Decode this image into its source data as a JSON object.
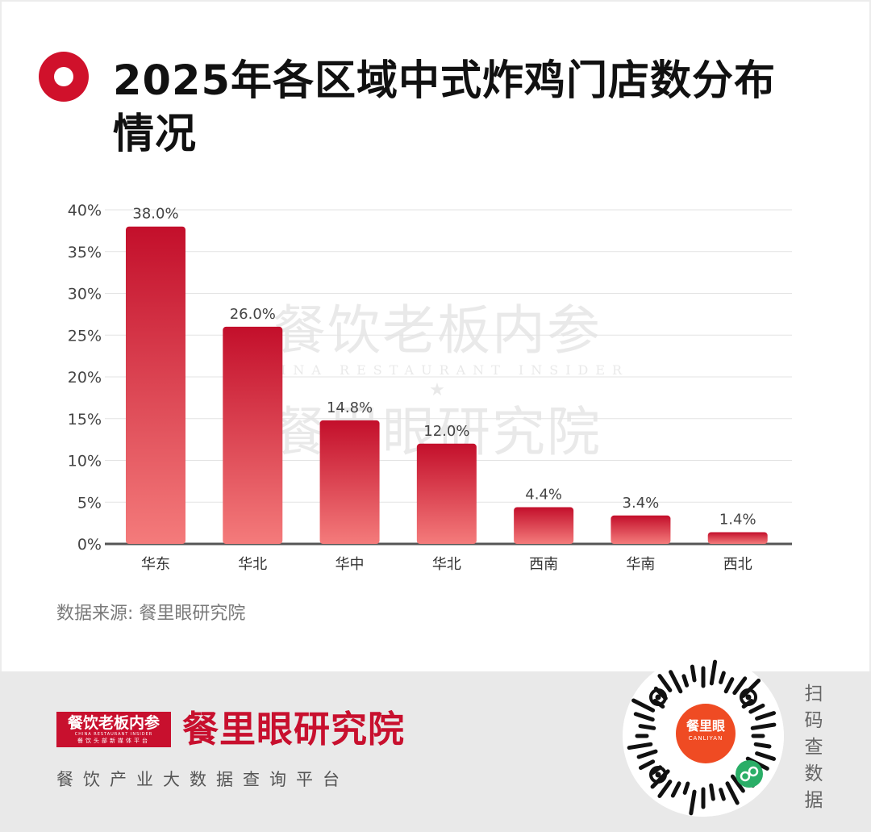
{
  "header": {
    "title": "2025年各区域中式炸鸡门店数分布情况"
  },
  "chart_data": {
    "type": "bar",
    "title": "2025年各区域中式炸鸡门店数分布情况",
    "categories": [
      "华东",
      "华北",
      "华中",
      "华北",
      "西南",
      "华南",
      "西北"
    ],
    "values": [
      38.0,
      26.0,
      14.8,
      12.0,
      4.4,
      3.4,
      1.4
    ],
    "value_labels": [
      "38.0%",
      "26.0%",
      "14.8%",
      "12.0%",
      "4.4%",
      "3.4%",
      "1.4%"
    ],
    "yticks": [
      "0%",
      "5%",
      "10%",
      "15%",
      "20%",
      "25%",
      "30%",
      "35%",
      "40%"
    ],
    "ylim": [
      0,
      40
    ],
    "grid": true,
    "legend": "none",
    "colors": {
      "bar_top": "#c30f2b",
      "bar_bottom": "#f47b7b",
      "axis": "#555555",
      "grid": "#e3e3e3"
    }
  },
  "source": "数据来源: 餐里眼研究院",
  "watermark": {
    "line1": "餐饮老板内参",
    "line2": "CHINA RESTAURANT INSIDER",
    "line3": "★",
    "line4": "餐里眼研究院"
  },
  "footer": {
    "box_main": "餐饮老板内参",
    "box_en": "CHINA RESTAURANT INSIDER",
    "box_sub": "餐饮头部新媒体平台",
    "brand_name": "餐里眼研究院",
    "tagline": "餐饮产业大数据查询平台",
    "qr_center_main": "餐里眼",
    "qr_center_en": "CANLIYAN",
    "scan_text": "扫码查数据",
    "colors": {
      "brand_red": "#c8102e",
      "qr_orange": "#ef4b23"
    }
  }
}
